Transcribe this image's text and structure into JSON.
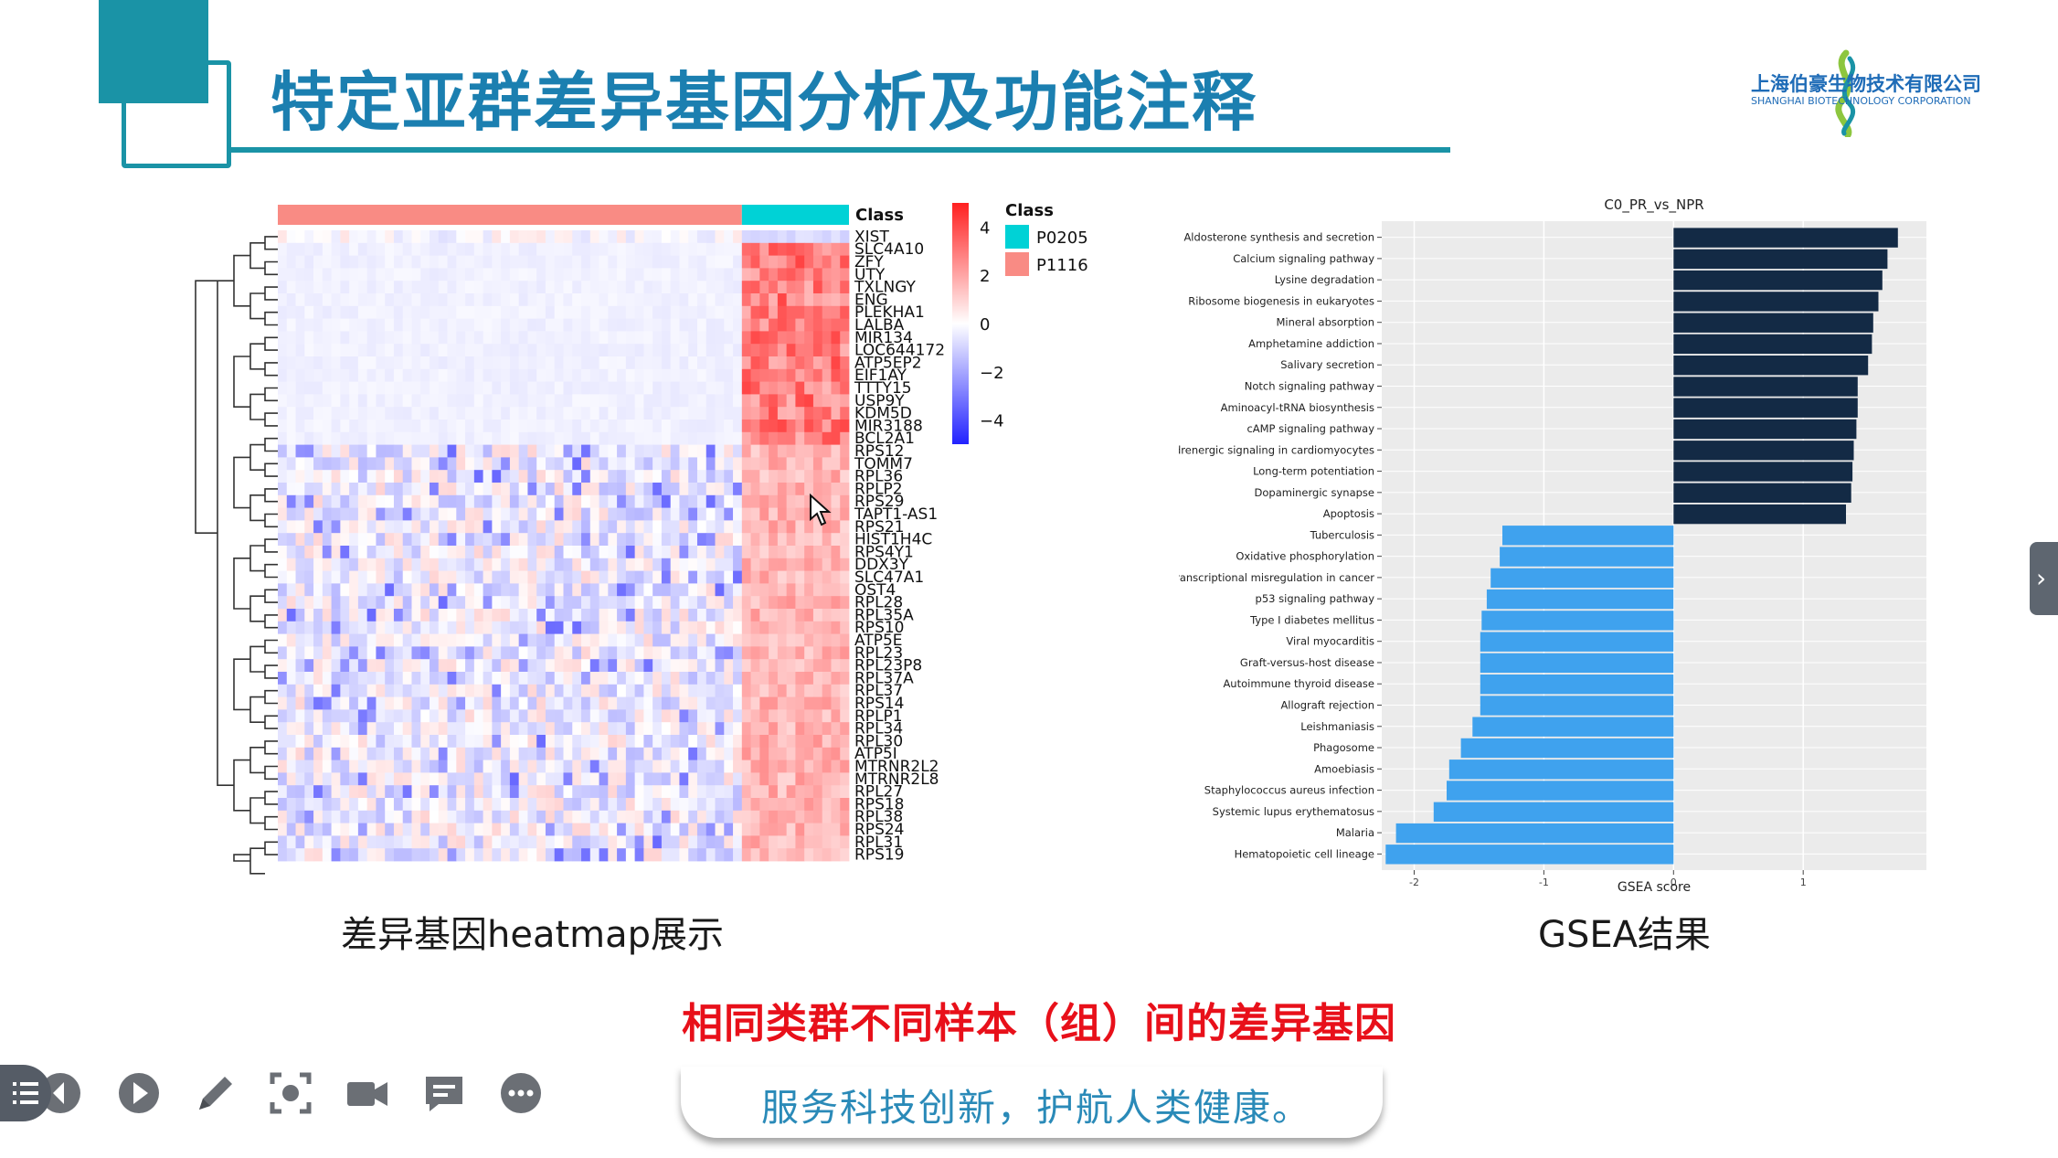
{
  "slide": {
    "title": "特定亚群差异基因分析及功能注释",
    "logo_cn": "上海伯豪生物技术有限公司",
    "logo_en": "SHANGHAI BIOTECHNOLOGY CORPORATION",
    "heatmap_caption": "差异基因heatmap展示",
    "gsea_caption": "GSEA结果",
    "subtitle": "相同类群不同样本（组）间的差异基因",
    "slogan": "服务科技创新，护航人类健康。"
  },
  "colors": {
    "title_blue": "#1b7fb0",
    "teal": "#1a93a6",
    "subtitle_red": "#e8101a",
    "class_p0205": "#00d2d6",
    "class_p1116": "#f98b84",
    "gsea_dark": "#132a45",
    "gsea_light": "#3fa2ee"
  },
  "toolbar": {
    "icons": [
      "menu-icon",
      "prev-icon",
      "play-icon",
      "pen-icon",
      "screenshot-icon",
      "camera-icon",
      "chat-icon",
      "more-icon"
    ]
  },
  "chart_data": [
    {
      "type": "heatmap",
      "title": "",
      "column_annotation_label": "Class",
      "legend": {
        "title": "Class",
        "entries": [
          {
            "name": "P0205",
            "color": "#00d2d6"
          },
          {
            "name": "P1116",
            "color": "#f98b84"
          }
        ]
      },
      "color_scale": {
        "ticks": [
          4,
          2,
          0,
          -2,
          -4
        ],
        "tick_labels": [
          "4",
          "2",
          "0",
          "−2",
          "−4"
        ],
        "range": [
          -5,
          5
        ],
        "low_color": "#2222ff",
        "mid_color": "#ffffff",
        "high_color": "#ff2020"
      },
      "columns": {
        "P1116": 52,
        "P0205": 12
      },
      "genes": [
        "XIST",
        "SLC4A10",
        "ZFY",
        "UTY",
        "TXLNGY",
        "ENG",
        "PLEKHA1",
        "LALBA",
        "MIR134",
        "LOC644172",
        "ATP5EP2",
        "EIF1AY",
        "TTTY15",
        "USP9Y",
        "KDM5D",
        "MIR3188",
        "BCL2A1",
        "RPS12",
        "TOMM7",
        "RPL36",
        "RPLP2",
        "RPS29",
        "TAPT1-AS1",
        "RPS21",
        "HIST1H4C",
        "RPS4Y1",
        "DDX3Y",
        "SLC47A1",
        "OST4",
        "RPL28",
        "RPL35A",
        "RPS10",
        "ATP5E",
        "RPL23",
        "RPL23P8",
        "RPL37A",
        "RPL37",
        "RPS14",
        "RPLP1",
        "RPL34",
        "RPL30",
        "ATP5I",
        "MTRNR2L2",
        "MTRNR2L8",
        "RPL27",
        "RPS18",
        "RPL38",
        "RPS24",
        "RPL31",
        "RPS19"
      ]
    },
    {
      "type": "bar",
      "orientation": "horizontal",
      "title": "C0_PR_vs_NPR",
      "xlabel": "GSEA score",
      "ylabel": "",
      "xlim": [
        -2.25,
        1.95
      ],
      "xticks": [
        -2,
        -1,
        0,
        1
      ],
      "xtick_labels": [
        "-2",
        "-1",
        "0",
        "1"
      ],
      "grid": true,
      "categories": [
        "Aldosterone synthesis and secretion",
        "Calcium signaling pathway",
        "Lysine degradation",
        "Ribosome biogenesis in eukaryotes",
        "Mineral absorption",
        "Amphetamine addiction",
        "Salivary secretion",
        "Notch signaling pathway",
        "Aminoacyl-tRNA biosynthesis",
        "cAMP signaling pathway",
        "Adrenergic signaling in cardiomyocytes",
        "Long-term potentiation",
        "Dopaminergic synapse",
        "Apoptosis",
        "Tuberculosis",
        "Oxidative phosphorylation",
        "Transcriptional misregulation in cancer",
        "p53 signaling pathway",
        "Type I diabetes mellitus",
        "Viral myocarditis",
        "Graft-versus-host disease",
        "Autoimmune thyroid disease",
        "Allograft rejection",
        "Leishmaniasis",
        "Phagosome",
        "Amoebiasis",
        "Staphylococcus aureus infection",
        "Systemic lupus erythematosus",
        "Malaria",
        "Hematopoietic cell lineage"
      ],
      "values": [
        1.73,
        1.65,
        1.61,
        1.58,
        1.54,
        1.53,
        1.5,
        1.42,
        1.42,
        1.41,
        1.39,
        1.38,
        1.37,
        1.33,
        -1.32,
        -1.34,
        -1.41,
        -1.44,
        -1.48,
        -1.49,
        -1.49,
        -1.49,
        -1.49,
        -1.55,
        -1.64,
        -1.73,
        -1.75,
        -1.85,
        -2.14,
        -2.22
      ]
    }
  ]
}
